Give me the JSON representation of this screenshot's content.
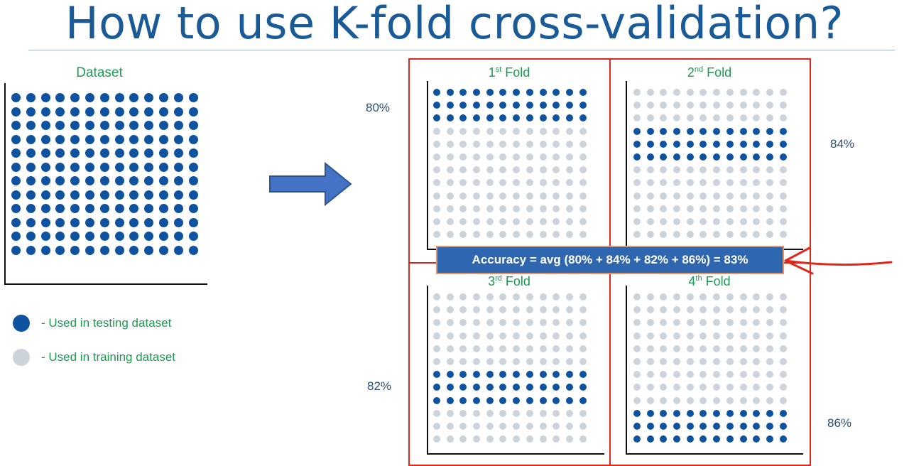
{
  "title": "How to use K-fold cross-validation?",
  "dataset": {
    "label": "Dataset",
    "rows": 12,
    "cols": 13
  },
  "colors": {
    "testing": "#0f52a0",
    "training": "#cdd3da",
    "accent_red": "#e0271c",
    "title": "#1a5a96",
    "label_green": "#1e9a55"
  },
  "folds": [
    {
      "ordinal": "1",
      "suffix": "st",
      "word": "Fold",
      "accuracy": "80%",
      "test_rows": [
        0,
        1,
        2
      ]
    },
    {
      "ordinal": "2",
      "suffix": "nd",
      "word": "Fold",
      "accuracy": "84%",
      "test_rows": [
        3,
        4,
        5
      ]
    },
    {
      "ordinal": "3",
      "suffix": "rd",
      "word": "Fold",
      "accuracy": "82%",
      "test_rows": [
        6,
        7,
        8
      ]
    },
    {
      "ordinal": "4",
      "suffix": "th",
      "word": "Fold",
      "accuracy": "86%",
      "test_rows": [
        9,
        10,
        11
      ]
    }
  ],
  "fold_grid": {
    "rows": 12,
    "cols": 12
  },
  "summary": "Accuracy = avg (80% + 84% + 82% + 86%) = 83%",
  "legend": [
    {
      "text": "- Used in testing dataset",
      "kind": "testing"
    },
    {
      "text": "- Used in training dataset",
      "kind": "training"
    }
  ]
}
